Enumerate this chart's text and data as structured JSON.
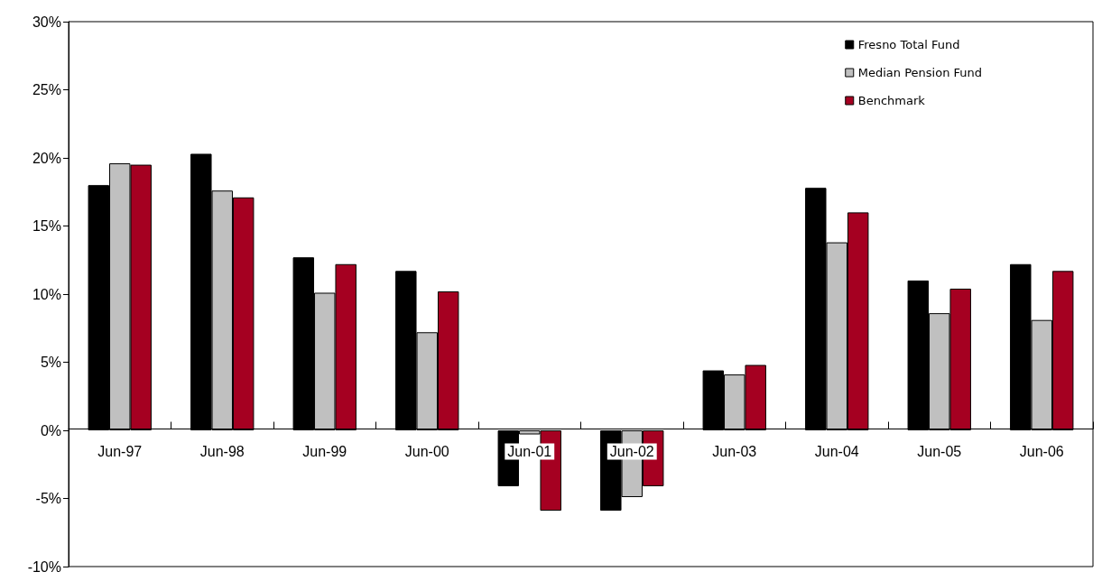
{
  "chart_data": {
    "type": "bar",
    "categories": [
      "Jun-97",
      "Jun-98",
      "Jun-99",
      "Jun-00",
      "Jun-01",
      "Jun-02",
      "Jun-03",
      "Jun-04",
      "Jun-05",
      "Jun-06"
    ],
    "series": [
      {
        "name": "Fresno Total Fund",
        "color": "#000000",
        "values": [
          18.0,
          20.3,
          12.7,
          11.7,
          -4.1,
          -5.9,
          4.4,
          17.8,
          11.0,
          12.2
        ]
      },
      {
        "name": "Median Pension Fund",
        "color": "#c0c0c0",
        "values": [
          19.6,
          17.6,
          10.1,
          7.2,
          -0.3,
          -4.9,
          4.1,
          13.8,
          8.6,
          8.1
        ]
      },
      {
        "name": "Benchmark",
        "color": "#a50021",
        "values": [
          19.5,
          17.1,
          12.2,
          10.2,
          -5.9,
          -4.1,
          4.8,
          16.0,
          10.4,
          11.7
        ]
      }
    ],
    "ylim": [
      -10,
      30
    ],
    "yticks": [
      {
        "value": -10,
        "label": "-10%"
      },
      {
        "value": -5,
        "label": "-5%"
      },
      {
        "value": 0,
        "label": "0%"
      },
      {
        "value": 5,
        "label": "5%"
      },
      {
        "value": 10,
        "label": "10%"
      },
      {
        "value": 15,
        "label": "15%"
      },
      {
        "value": 20,
        "label": "20%"
      },
      {
        "value": 25,
        "label": "25%"
      },
      {
        "value": 30,
        "label": "30%"
      }
    ],
    "grid": false,
    "legend": "top right"
  }
}
